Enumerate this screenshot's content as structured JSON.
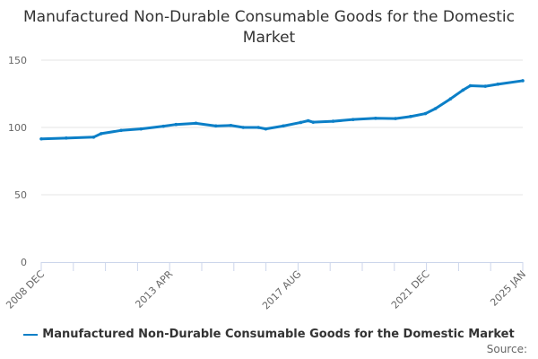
{
  "chart_data": {
    "type": "line",
    "title": "Manufactured Non-Durable Consumable Goods for the Domestic Market",
    "xlabel": "",
    "ylabel": "",
    "ylim": [
      0,
      150
    ],
    "yticks": [
      0,
      50,
      100,
      150
    ],
    "xrange": [
      "2008-12",
      "2025-01"
    ],
    "xtick_labels": [
      "2008 DEC",
      "2013 APR",
      "2017 AUG",
      "2021 DEC",
      "2025 JAN"
    ],
    "grid": true,
    "legend_position": "bottom",
    "color": "#0b7fc7",
    "series": [
      {
        "name": "Manufactured Non-Durable Consumable Goods for the Domestic Market",
        "x": [
          "2008-12",
          "2009-10",
          "2010-09",
          "2010-12",
          "2011-08",
          "2012-04",
          "2013-01",
          "2013-06",
          "2014-02",
          "2014-10",
          "2015-04",
          "2015-09",
          "2016-03",
          "2016-06",
          "2017-01",
          "2017-08",
          "2017-11",
          "2018-01",
          "2018-09",
          "2019-05",
          "2020-02",
          "2020-10",
          "2021-04",
          "2021-10",
          "2022-02",
          "2022-08",
          "2023-01",
          "2023-04",
          "2023-10",
          "2024-03",
          "2025-01"
        ],
        "y": [
          91.5,
          92.1,
          92.8,
          95.4,
          97.8,
          98.9,
          100.9,
          102.2,
          103.1,
          101.1,
          101.5,
          100,
          100,
          98.9,
          101.1,
          103.7,
          105,
          103.9,
          104.6,
          105.9,
          106.8,
          106.6,
          108.1,
          110.3,
          114,
          121.2,
          127.7,
          131,
          130.6,
          132.1,
          134.7
        ]
      }
    ]
  },
  "source_label": "Source:"
}
